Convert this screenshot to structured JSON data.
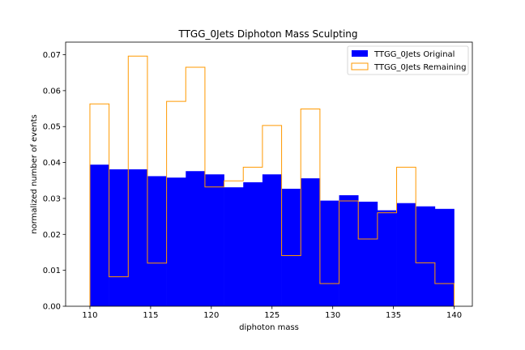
{
  "chart_data": {
    "type": "bar",
    "title": "TTGG_0Jets Diphoton Mass Sculpting",
    "xlabel": "diphoton mass",
    "ylabel": "normalized number of events",
    "xlim": [
      108,
      141.5
    ],
    "ylim": [
      0,
      0.0735
    ],
    "bin_edges": [
      110,
      111.5789,
      113.1579,
      114.7368,
      116.3158,
      117.8947,
      119.4737,
      121.0526,
      122.6316,
      124.2105,
      125.7895,
      127.3684,
      128.9474,
      130.5263,
      132.1053,
      133.6842,
      135.2632,
      136.8421,
      138.4211,
      140
    ],
    "x_ticks": [
      110,
      115,
      120,
      125,
      130,
      135,
      140
    ],
    "y_ticks": [
      0.0,
      0.01,
      0.02,
      0.03,
      0.04,
      0.05,
      0.06,
      0.07
    ],
    "x_tick_labels": [
      "110",
      "115",
      "120",
      "125",
      "130",
      "135",
      "140"
    ],
    "y_tick_labels": [
      "0.00",
      "0.01",
      "0.02",
      "0.03",
      "0.04",
      "0.05",
      "0.06",
      "0.07"
    ],
    "series": [
      {
        "name": "TTGG_0Jets Original",
        "style": "filled",
        "color": "#0000ff",
        "values": [
          0.0394,
          0.0381,
          0.0381,
          0.0362,
          0.0358,
          0.0376,
          0.0367,
          0.0331,
          0.0345,
          0.0367,
          0.0327,
          0.0356,
          0.0294,
          0.0309,
          0.0291,
          0.0267,
          0.0287,
          0.0278,
          0.0271
        ]
      },
      {
        "name": "TTGG_0Jets Remaining",
        "style": "step",
        "color": "#ff9900",
        "values": [
          0.0563,
          0.0082,
          0.0696,
          0.012,
          0.057,
          0.0665,
          0.0332,
          0.0349,
          0.0387,
          0.0503,
          0.0141,
          0.0549,
          0.0063,
          0.0293,
          0.0187,
          0.026,
          0.0387,
          0.0121,
          0.0063
        ]
      }
    ],
    "legend_position": "top-right",
    "grid": false
  }
}
